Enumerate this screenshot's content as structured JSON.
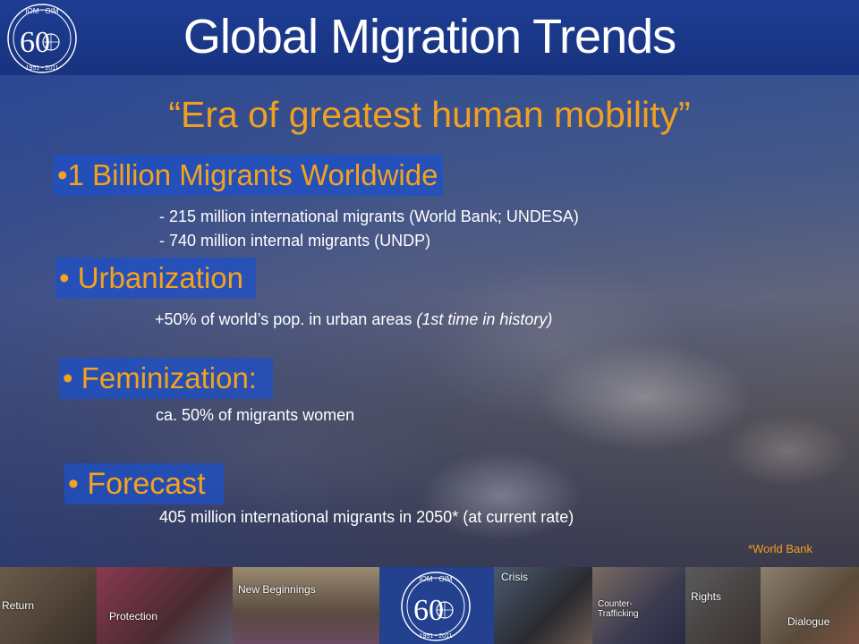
{
  "header": {
    "title": "Global Migration Trends",
    "logo": {
      "org": "IOM · OIM",
      "anniversary": "60",
      "years": "1951 - 2011"
    }
  },
  "subtitle": "“Era of greatest human mobility”",
  "sections": [
    {
      "heading": "•1 Billion Migrants Worldwide",
      "details": [
        "- 215 million international migrants (World Bank; UNDESA)",
        "- 740 million internal migrants (UNDP)"
      ]
    },
    {
      "heading": "• Urbanization",
      "detail_main": "+50% of world’s pop. in urban areas ",
      "detail_italic": "(1st time in history)"
    },
    {
      "heading": "• Feminization:",
      "detail": "ca. 50% of migrants women"
    },
    {
      "heading": "• Forecast",
      "detail": "405 million international migrants in 2050* (at current rate)"
    }
  ],
  "footnote": "*World Bank",
  "photo_strip": {
    "labels": [
      "Return",
      "Protection",
      "New Beginnings",
      "Crisis",
      "Counter-Trafficking",
      "Rights",
      "Dialogue"
    ]
  }
}
